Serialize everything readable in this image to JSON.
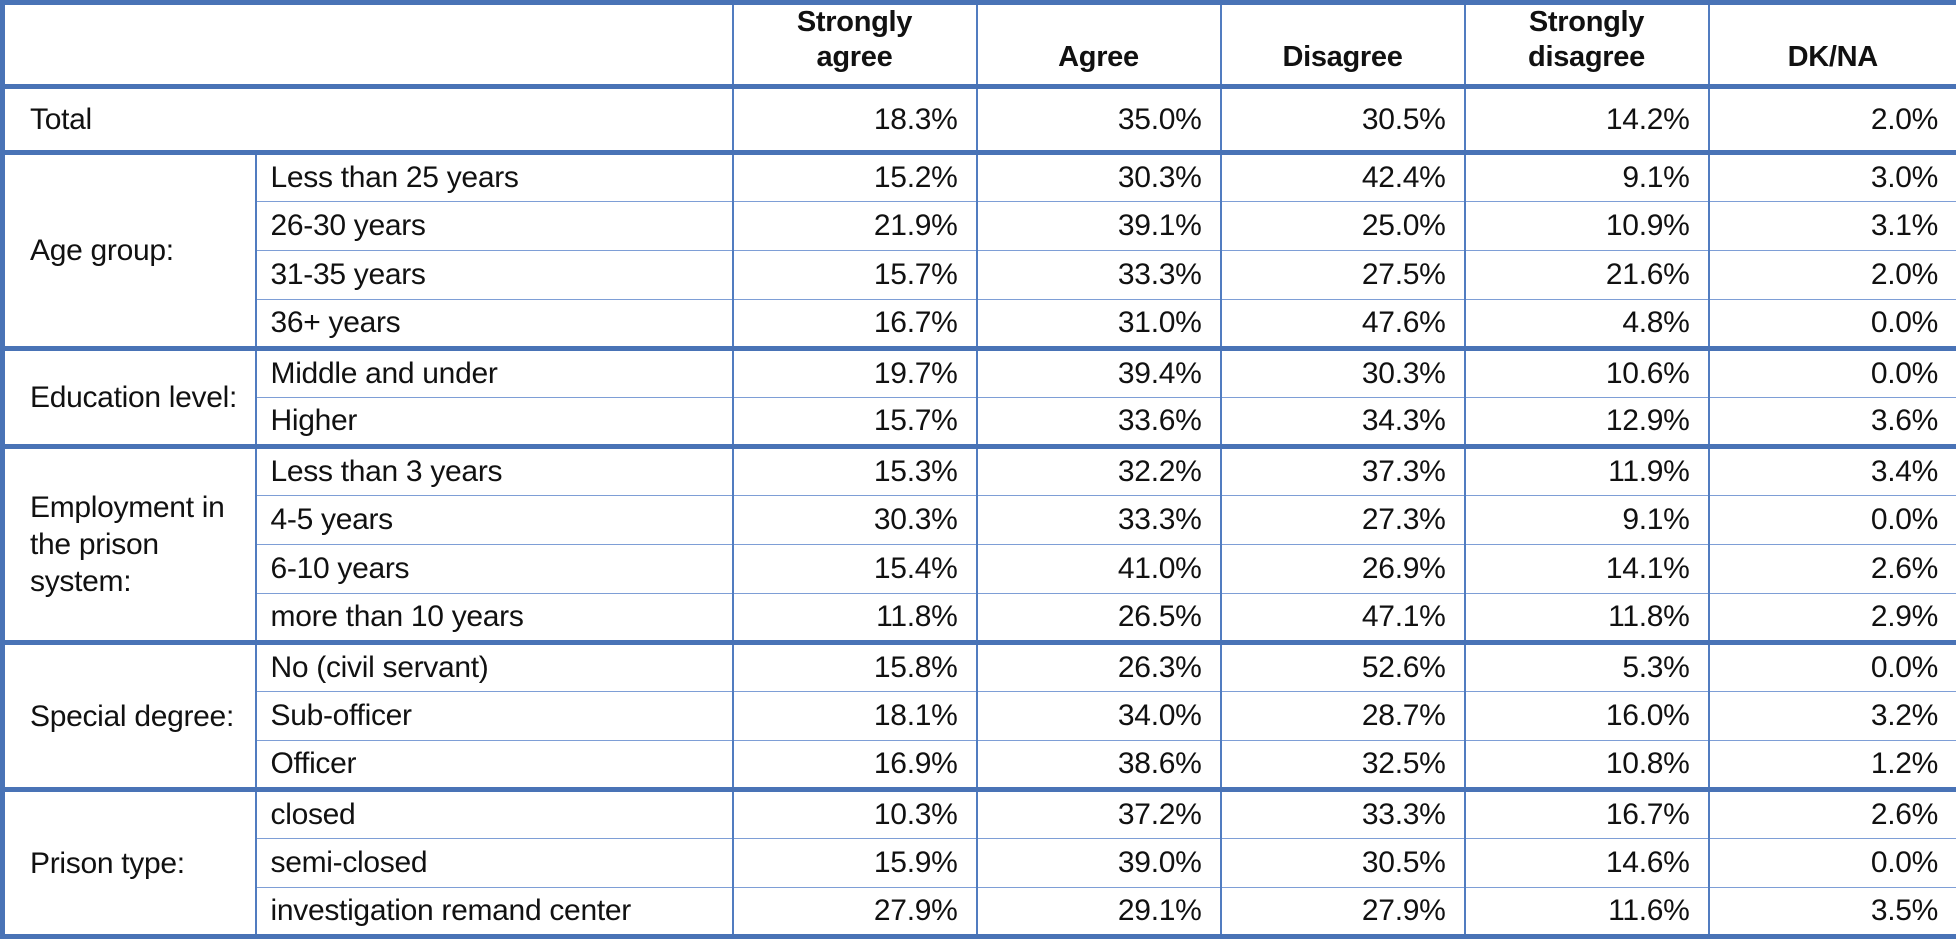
{
  "table": {
    "columns": [
      "Strongly\nagree",
      "Agree",
      "Disagree",
      "Strongly\ndisagree",
      "DK/NA"
    ],
    "total": {
      "label": "Total",
      "values": [
        "18.3%",
        "35.0%",
        "30.5%",
        "14.2%",
        "2.0%"
      ]
    },
    "groups": [
      {
        "label": "Age group:",
        "rows": [
          {
            "label": "Less than 25 years",
            "values": [
              "15.2%",
              "30.3%",
              "42.4%",
              "9.1%",
              "3.0%"
            ]
          },
          {
            "label": "26-30 years",
            "values": [
              "21.9%",
              "39.1%",
              "25.0%",
              "10.9%",
              "3.1%"
            ]
          },
          {
            "label": "31-35 years",
            "values": [
              "15.7%",
              "33.3%",
              "27.5%",
              "21.6%",
              "2.0%"
            ]
          },
          {
            "label": "36+ years",
            "values": [
              "16.7%",
              "31.0%",
              "47.6%",
              "4.8%",
              "0.0%"
            ]
          }
        ]
      },
      {
        "label": "Education level:",
        "rows": [
          {
            "label": "Middle and under",
            "values": [
              "19.7%",
              "39.4%",
              "30.3%",
              "10.6%",
              "0.0%"
            ]
          },
          {
            "label": "Higher",
            "values": [
              "15.7%",
              "33.6%",
              "34.3%",
              "12.9%",
              "3.6%"
            ]
          }
        ]
      },
      {
        "label": "Employment in the prison system:",
        "rows": [
          {
            "label": "Less than 3 years",
            "values": [
              "15.3%",
              "32.2%",
              "37.3%",
              "11.9%",
              "3.4%"
            ]
          },
          {
            "label": "4-5 years",
            "values": [
              "30.3%",
              "33.3%",
              "27.3%",
              "9.1%",
              "0.0%"
            ]
          },
          {
            "label": "6-10 years",
            "values": [
              "15.4%",
              "41.0%",
              "26.9%",
              "14.1%",
              "2.6%"
            ]
          },
          {
            "label": "more than 10 years",
            "values": [
              "11.8%",
              "26.5%",
              "47.1%",
              "11.8%",
              "2.9%"
            ]
          }
        ]
      },
      {
        "label": "Special degree:",
        "rows": [
          {
            "label": "No (civil servant)",
            "values": [
              "15.8%",
              "26.3%",
              "52.6%",
              "5.3%",
              "0.0%"
            ]
          },
          {
            "label": "Sub-officer",
            "values": [
              "18.1%",
              "34.0%",
              "28.7%",
              "16.0%",
              "3.2%"
            ]
          },
          {
            "label": "Officer",
            "values": [
              "16.9%",
              "38.6%",
              "32.5%",
              "10.8%",
              "1.2%"
            ]
          }
        ]
      },
      {
        "label": "Prison type:",
        "rows": [
          {
            "label": "closed",
            "values": [
              "10.3%",
              "37.2%",
              "33.3%",
              "16.7%",
              "2.6%"
            ]
          },
          {
            "label": "semi-closed",
            "values": [
              "15.9%",
              "39.0%",
              "30.5%",
              "14.6%",
              "0.0%"
            ]
          },
          {
            "label": "investigation remand center",
            "values": [
              "27.9%",
              "29.1%",
              "27.9%",
              "11.6%",
              "3.5%"
            ]
          }
        ]
      }
    ],
    "colors": {
      "border_thick": "#4973B6",
      "border_vertical": "#517CC0",
      "border_thin": "#7E9ED6",
      "text": "#111111"
    }
  }
}
